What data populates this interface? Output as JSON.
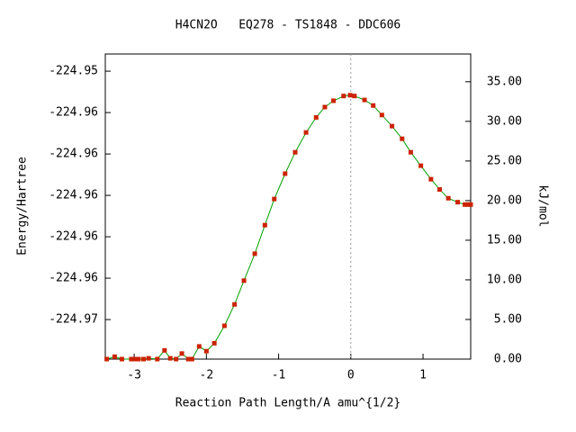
{
  "chart_data": {
    "type": "line",
    "title": "H4CN2O   EQ278 - TS1848 - DDC606",
    "xlabel": "Reaction Path Length/A amu^{1/2}",
    "ylabel": "Energy/Hartree",
    "y2label": "kJ/mol",
    "xlim": [
      -3.4,
      1.66
    ],
    "xticks": [
      -3,
      -2,
      -1,
      0,
      1
    ],
    "ylim": [
      -224.97191,
      -224.95717
    ],
    "yticks": [
      {
        "value": -224.958,
        "label": "-224.95"
      },
      {
        "value": -224.96,
        "label": "-224.96"
      },
      {
        "value": -224.962,
        "label": "-224.96"
      },
      {
        "value": -224.964,
        "label": "-224.96"
      },
      {
        "value": -224.966,
        "label": "-224.96"
      },
      {
        "value": -224.968,
        "label": "-224.96"
      },
      {
        "value": -224.97,
        "label": "-224.97"
      }
    ],
    "y2lim": [
      0,
      38.5
    ],
    "y2ticks": [
      {
        "value": 0,
        "label": "0.00"
      },
      {
        "value": 5,
        "label": "5.00"
      },
      {
        "value": 10,
        "label": "10.00"
      },
      {
        "value": 15,
        "label": "15.00"
      },
      {
        "value": 20,
        "label": "20.00"
      },
      {
        "value": 25,
        "label": "25.00"
      },
      {
        "value": 30,
        "label": "30.00"
      },
      {
        "value": 35,
        "label": "35.00"
      }
    ],
    "vline": 0,
    "axis": "y2",
    "color": "#cc2200",
    "line_color": "#00a000",
    "x": [
      -3.38,
      -3.27,
      -3.17,
      -3.04,
      -2.99,
      -2.94,
      -2.87,
      -2.8,
      -2.68,
      -2.58,
      -2.5,
      -2.42,
      -2.34,
      -2.25,
      -2.2,
      -2.1,
      -2.0,
      -1.89,
      -1.75,
      -1.61,
      -1.48,
      -1.33,
      -1.19,
      -1.06,
      -0.91,
      -0.77,
      -0.62,
      -0.48,
      -0.36,
      -0.24,
      -0.1,
      -0.01,
      0.05,
      0.19,
      0.31,
      0.43,
      0.57,
      0.71,
      0.83,
      0.97,
      1.11,
      1.23,
      1.35,
      1.48,
      1.58,
      1.63,
      1.66
    ],
    "values": [
      0,
      0.3,
      0,
      0,
      0,
      0,
      0,
      0.1,
      0,
      1.1,
      0.1,
      0,
      0.7,
      0,
      0,
      1.6,
      1.0,
      2.0,
      4.2,
      6.9,
      9.9,
      13.3,
      16.9,
      20.2,
      23.4,
      26.1,
      28.6,
      30.5,
      31.8,
      32.6,
      33.2,
      33.3,
      33.2,
      32.7,
      32.0,
      30.8,
      29.4,
      27.8,
      26.1,
      24.4,
      22.7,
      21.4,
      20.3,
      19.8,
      19.5,
      19.5,
      19.5
    ]
  }
}
